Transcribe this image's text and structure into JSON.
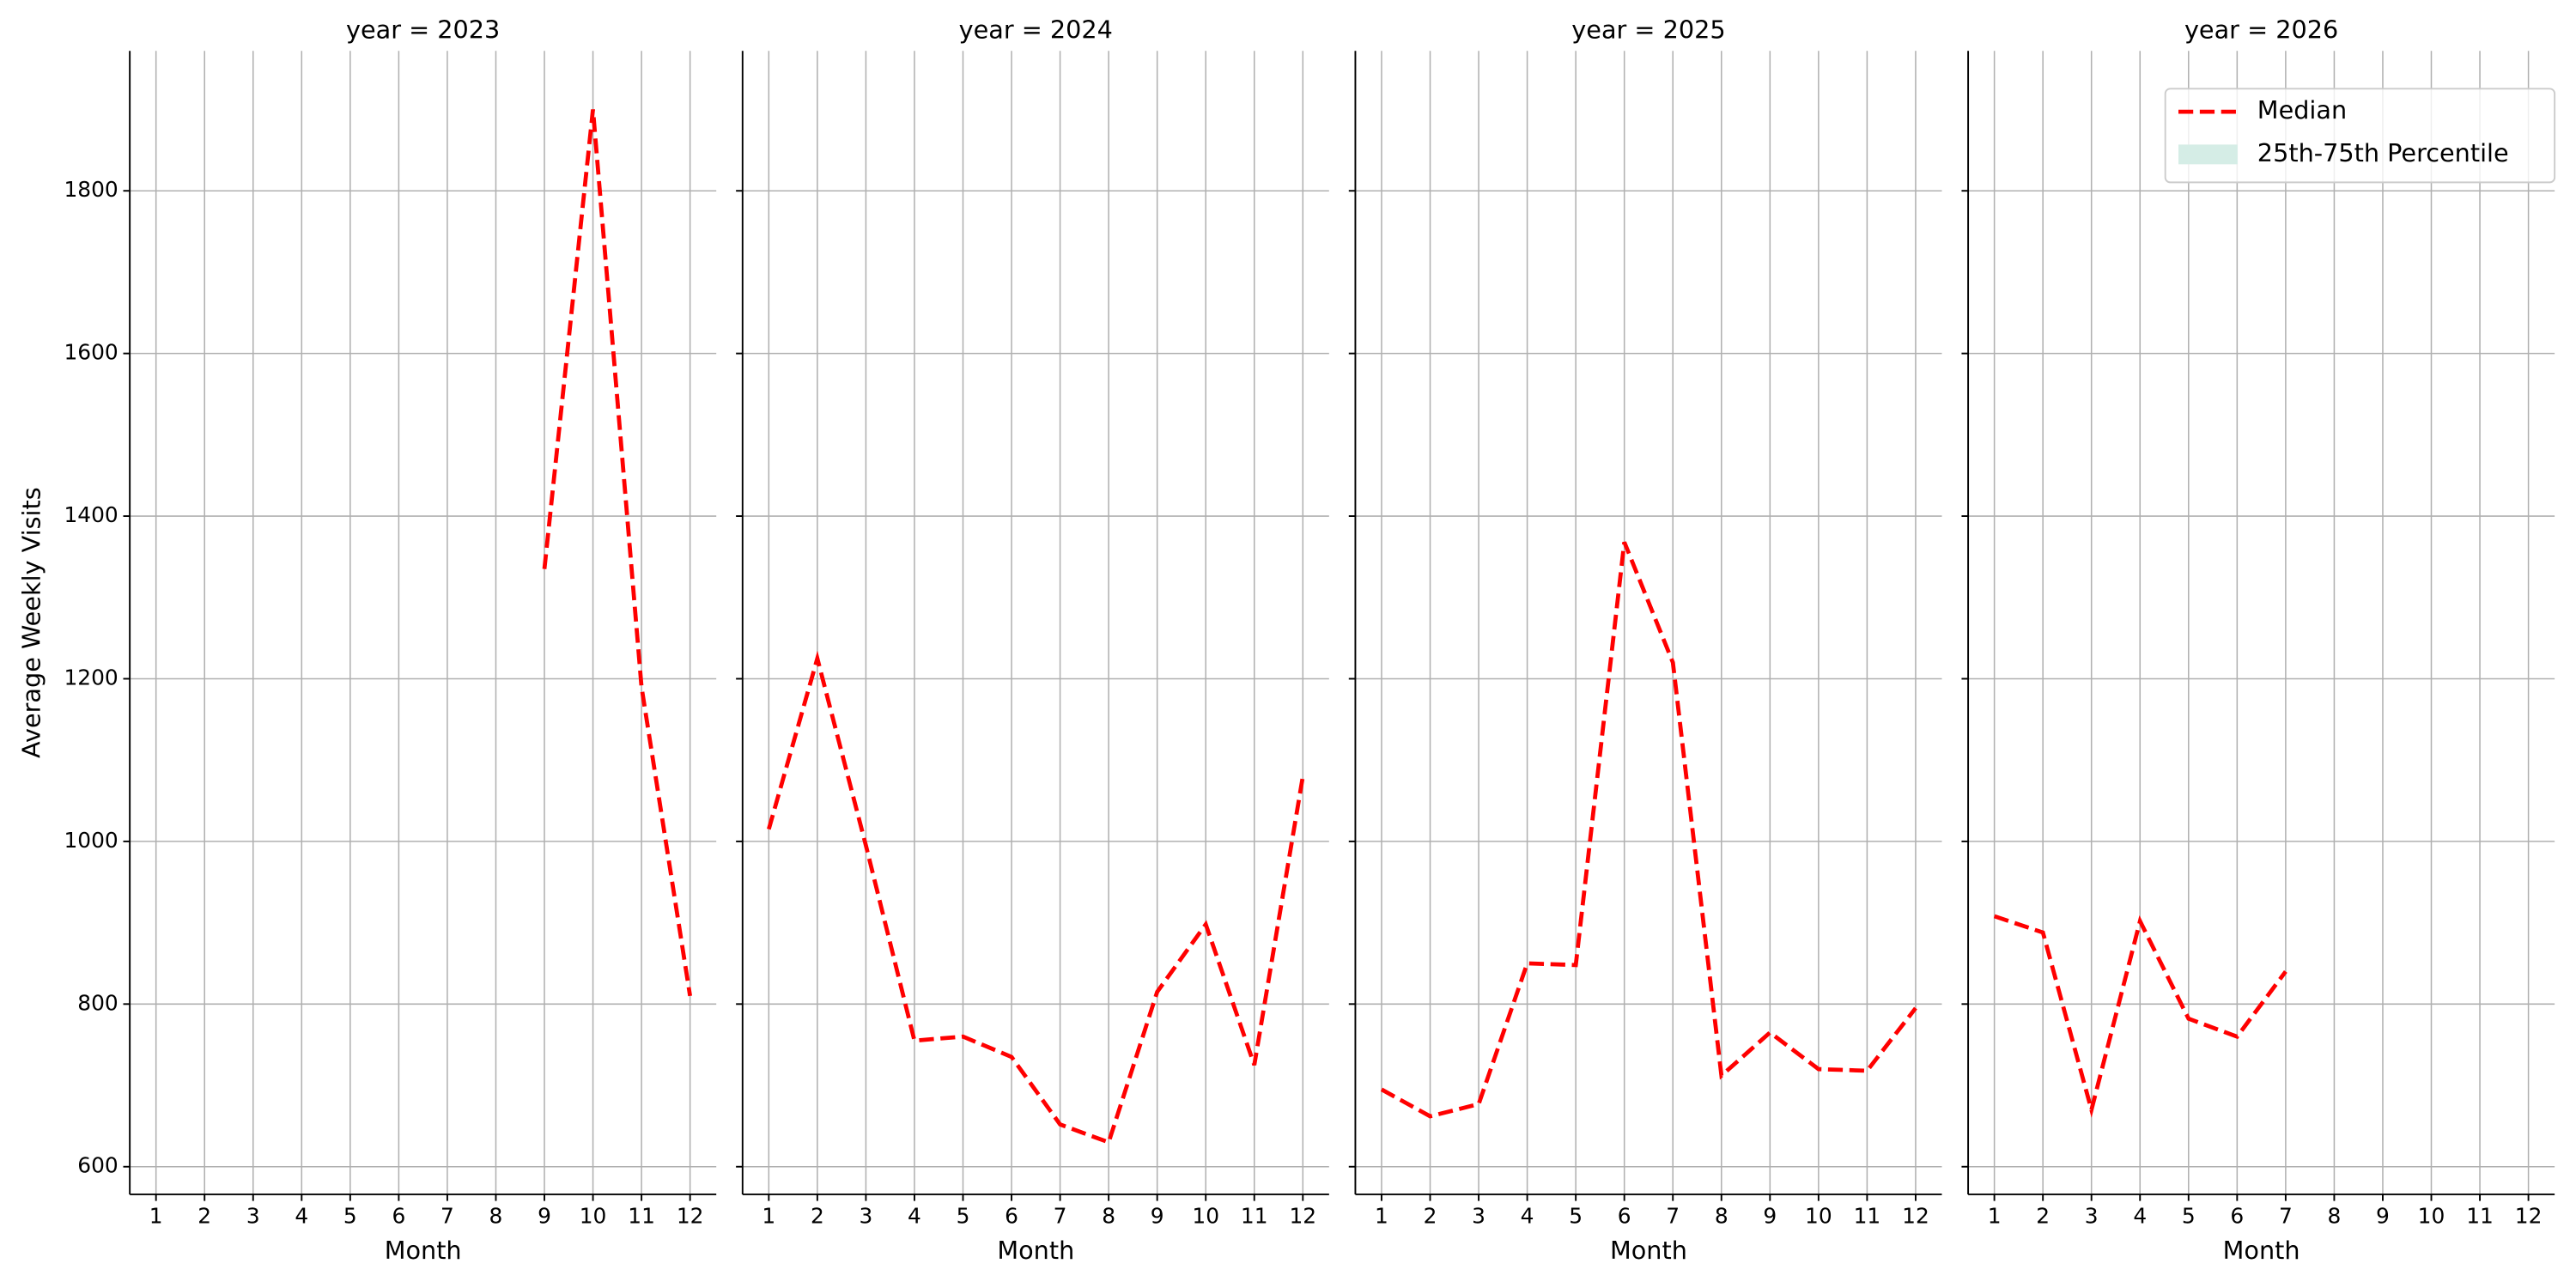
{
  "chart_data": [
    {
      "type": "line",
      "title": "year = 2023",
      "xlabel": "Month",
      "ylabel": "Average Weekly Visits",
      "x": [
        1,
        2,
        3,
        4,
        5,
        6,
        7,
        8,
        9,
        10,
        11,
        12
      ],
      "values": [
        null,
        null,
        null,
        null,
        null,
        null,
        null,
        null,
        1335,
        1900,
        1190,
        810
      ],
      "color": "#ff0000",
      "line_style": "dashed",
      "xlim": [
        0.46,
        12.54
      ],
      "ylim": [
        566,
        1972
      ],
      "xticks": [
        1,
        2,
        3,
        4,
        5,
        6,
        7,
        8,
        9,
        10,
        11,
        12
      ],
      "yticks": [
        600,
        800,
        1000,
        1200,
        1400,
        1600,
        1800
      ],
      "grid": true
    },
    {
      "type": "line",
      "title": "year = 2024",
      "xlabel": "Month",
      "x": [
        1,
        2,
        3,
        4,
        5,
        6,
        7,
        8,
        9,
        10,
        11,
        12
      ],
      "values": [
        1015,
        1225,
        995,
        755,
        760,
        735,
        652,
        630,
        815,
        898,
        725,
        1080
      ],
      "color": "#ff0000",
      "line_style": "dashed",
      "xlim": [
        0.46,
        12.54
      ],
      "ylim": [
        566,
        1972
      ],
      "xticks": [
        1,
        2,
        3,
        4,
        5,
        6,
        7,
        8,
        9,
        10,
        11,
        12
      ],
      "yticks": [
        600,
        800,
        1000,
        1200,
        1400,
        1600,
        1800
      ],
      "grid": true
    },
    {
      "type": "line",
      "title": "year = 2025",
      "xlabel": "Month",
      "x": [
        1,
        2,
        3,
        4,
        5,
        6,
        7,
        8,
        9,
        10,
        11,
        12
      ],
      "values": [
        695,
        662,
        677,
        850,
        848,
        1368,
        1220,
        712,
        765,
        720,
        718,
        795
      ],
      "color": "#ff0000",
      "line_style": "dashed",
      "xlim": [
        0.46,
        12.54
      ],
      "ylim": [
        566,
        1972
      ],
      "xticks": [
        1,
        2,
        3,
        4,
        5,
        6,
        7,
        8,
        9,
        10,
        11,
        12
      ],
      "yticks": [
        600,
        800,
        1000,
        1200,
        1400,
        1600,
        1800
      ],
      "grid": true
    },
    {
      "type": "line",
      "title": "year = 2026",
      "xlabel": "Month",
      "x": [
        1,
        2,
        3,
        4,
        5,
        6,
        7,
        8,
        9,
        10,
        11,
        12
      ],
      "values": [
        908,
        888,
        670,
        902,
        782,
        760,
        840,
        null,
        null,
        null,
        null,
        null
      ],
      "color": "#ff0000",
      "line_style": "dashed",
      "xlim": [
        0.46,
        12.54
      ],
      "ylim": [
        566,
        1972
      ],
      "xticks": [
        1,
        2,
        3,
        4,
        5,
        6,
        7,
        8,
        9,
        10,
        11,
        12
      ],
      "yticks": [
        600,
        800,
        1000,
        1200,
        1400,
        1600,
        1800
      ],
      "grid": true
    }
  ],
  "legend": {
    "loc": "upper right",
    "items": [
      {
        "name": "Median",
        "color": "#ff0000",
        "style": "dashed"
      },
      {
        "name": "25th-75th Percentile",
        "color": "#d5ede6",
        "style": "patch"
      }
    ]
  }
}
